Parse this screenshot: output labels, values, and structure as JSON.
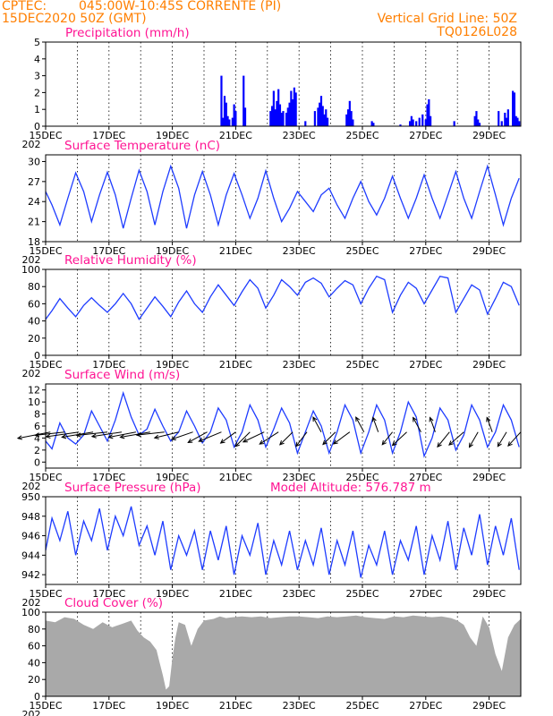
{
  "header": {
    "source": "CPTEC:",
    "location": "045:00W-10:45S   CORRENTE (PI)",
    "date": "15DEC2020 50Z (GMT)",
    "grid_note": "Vertical Grid Line: 50Z",
    "code": "TQ0126L028"
  },
  "x_axis": {
    "start_day": 15,
    "end_day": 30,
    "ticks": [
      "15DEC",
      "17DEC",
      "19DEC",
      "21DEC",
      "23DEC",
      "25DEC",
      "27DEC",
      "29DEC"
    ],
    "tick_days": [
      15,
      17,
      19,
      21,
      23,
      25,
      27,
      29
    ],
    "year_fragment": "202"
  },
  "chart_data": [
    {
      "key": "precip",
      "type": "bar",
      "title": "Precipitation (mm/h)",
      "ylim": [
        0,
        5
      ],
      "yticks": [
        0,
        1,
        2,
        3,
        4,
        5
      ],
      "color": "#0000ff",
      "x_day": [
        20.55,
        20.6,
        20.65,
        20.7,
        20.75,
        20.8,
        20.9,
        20.95,
        21.0,
        21.25,
        21.3,
        22.1,
        22.15,
        22.2,
        22.25,
        22.3,
        22.35,
        22.4,
        22.45,
        22.5,
        22.6,
        22.65,
        22.7,
        22.75,
        22.8,
        22.85,
        22.9,
        23.2,
        23.5,
        23.6,
        23.65,
        23.7,
        23.75,
        23.8,
        23.85,
        23.9,
        24.5,
        24.55,
        24.6,
        24.65,
        24.7,
        25.3,
        25.35,
        26.2,
        26.5,
        26.55,
        26.6,
        26.7,
        26.8,
        26.9,
        27.0,
        27.05,
        27.1,
        27.15,
        27.9,
        28.55,
        28.6,
        28.65,
        28.7,
        29.3,
        29.4,
        29.5,
        29.55,
        29.6,
        29.75,
        29.8,
        29.85,
        29.9,
        29.95
      ],
      "values": [
        3.0,
        0.5,
        1.8,
        1.4,
        0.6,
        0.4,
        0.5,
        1.3,
        0.9,
        3.0,
        1.1,
        0.9,
        1.2,
        2.1,
        1.0,
        1.5,
        2.2,
        1.3,
        0.8,
        0.9,
        0.8,
        1.1,
        1.4,
        2.1,
        1.6,
        2.3,
        2.0,
        0.3,
        0.9,
        1.1,
        1.4,
        1.8,
        1.2,
        0.7,
        1.0,
        0.5,
        0.7,
        1.0,
        1.5,
        0.9,
        0.4,
        0.3,
        0.2,
        0.1,
        0.3,
        0.6,
        0.4,
        0.3,
        0.5,
        0.7,
        0.4,
        1.3,
        1.6,
        0.6,
        0.3,
        0.6,
        0.9,
        0.4,
        0.2,
        0.9,
        0.3,
        0.8,
        0.5,
        1.0,
        2.1,
        2.0,
        0.6,
        0.5,
        0.3
      ]
    },
    {
      "key": "temp",
      "type": "line",
      "title": "Surface Temperature (nC)",
      "ylim": [
        18,
        31
      ],
      "yticks": [
        18,
        21,
        24,
        27,
        30
      ],
      "color": "#1e3cff",
      "x_day": [
        15.0,
        15.2,
        15.45,
        15.7,
        15.95,
        16.2,
        16.45,
        16.7,
        16.95,
        17.2,
        17.45,
        17.7,
        17.95,
        18.2,
        18.45,
        18.7,
        18.95,
        19.2,
        19.45,
        19.7,
        19.95,
        20.2,
        20.45,
        20.7,
        20.95,
        21.2,
        21.45,
        21.7,
        21.95,
        22.2,
        22.45,
        22.7,
        22.95,
        23.2,
        23.45,
        23.7,
        23.95,
        24.2,
        24.45,
        24.7,
        24.95,
        25.2,
        25.45,
        25.7,
        25.95,
        26.2,
        26.45,
        26.7,
        26.95,
        27.2,
        27.45,
        27.7,
        27.95,
        28.2,
        28.45,
        28.7,
        28.95,
        29.2,
        29.45,
        29.7,
        29.95
      ],
      "values": [
        25.5,
        23.5,
        20.5,
        24.5,
        28.3,
        25.5,
        21,
        25,
        28.4,
        25,
        20,
        24.5,
        28.7,
        25.5,
        20.5,
        25.5,
        29.3,
        26,
        20,
        25,
        28.5,
        25,
        20.5,
        25,
        28.2,
        25,
        21.5,
        24.5,
        28.6,
        24.5,
        21,
        23,
        25.5,
        24,
        22.5,
        25,
        26,
        23.5,
        21.5,
        24.5,
        27,
        24,
        22,
        24.5,
        27.8,
        24.5,
        21.5,
        24.5,
        28,
        24.5,
        21.5,
        25,
        28.5,
        24.5,
        21.5,
        25.5,
        29.3,
        25,
        20.5,
        24.5,
        27.5
      ]
    },
    {
      "key": "rh",
      "type": "line",
      "title": "Relative Humidity (%)",
      "ylim": [
        0,
        100
      ],
      "yticks": [
        0,
        20,
        40,
        60,
        80,
        100
      ],
      "color": "#1e3cff",
      "x_day": [
        15.0,
        15.2,
        15.45,
        15.7,
        15.95,
        16.2,
        16.45,
        16.7,
        16.95,
        17.2,
        17.45,
        17.7,
        17.95,
        18.2,
        18.45,
        18.7,
        18.95,
        19.2,
        19.45,
        19.7,
        19.95,
        20.2,
        20.45,
        20.7,
        20.95,
        21.2,
        21.45,
        21.7,
        21.95,
        22.2,
        22.45,
        22.7,
        22.95,
        23.2,
        23.45,
        23.7,
        23.95,
        24.2,
        24.45,
        24.7,
        24.95,
        25.2,
        25.45,
        25.7,
        25.95,
        26.2,
        26.45,
        26.7,
        26.95,
        27.2,
        27.45,
        27.7,
        27.95,
        28.2,
        28.45,
        28.7,
        28.95,
        29.2,
        29.45,
        29.7,
        29.95
      ],
      "values": [
        42,
        52,
        66,
        55,
        45,
        58,
        67,
        58,
        50,
        60,
        72,
        60,
        42,
        55,
        68,
        57,
        45,
        62,
        75,
        60,
        50,
        68,
        82,
        70,
        58,
        74,
        88,
        78,
        55,
        70,
        88,
        80,
        70,
        85,
        90,
        84,
        68,
        78,
        87,
        82,
        60,
        78,
        92,
        88,
        50,
        70,
        85,
        78,
        60,
        76,
        92,
        90,
        50,
        66,
        82,
        76,
        48,
        66,
        85,
        80,
        58
      ]
    },
    {
      "key": "wind",
      "type": "line",
      "title": "Surface Wind (m/s)",
      "ylim": [
        -1,
        13
      ],
      "yticks": [
        0,
        2,
        4,
        6,
        8,
        10,
        12
      ],
      "color": "#1e3cff",
      "x_day": [
        15.0,
        15.2,
        15.45,
        15.7,
        15.95,
        16.2,
        16.45,
        16.7,
        16.95,
        17.2,
        17.45,
        17.7,
        17.95,
        18.2,
        18.45,
        18.7,
        18.95,
        19.2,
        19.45,
        19.7,
        19.95,
        20.2,
        20.45,
        20.7,
        20.95,
        21.2,
        21.45,
        21.7,
        21.95,
        22.2,
        22.45,
        22.7,
        22.95,
        23.2,
        23.45,
        23.7,
        23.95,
        24.2,
        24.45,
        24.7,
        24.95,
        25.2,
        25.45,
        25.7,
        25.95,
        26.2,
        26.45,
        26.7,
        26.95,
        27.2,
        27.45,
        27.7,
        27.95,
        28.2,
        28.45,
        28.7,
        28.95,
        29.2,
        29.45,
        29.7,
        29.95
      ],
      "values": [
        3.5,
        2.2,
        6.5,
        4,
        3,
        4.5,
        8.5,
        6,
        3.5,
        7,
        11.5,
        7.5,
        4.5,
        5.5,
        8.8,
        6,
        3.5,
        5,
        8.5,
        6,
        3.2,
        5,
        9,
        7,
        2.5,
        5,
        9.5,
        7,
        2.5,
        5.5,
        9,
        6.5,
        1.5,
        5,
        8.5,
        6,
        1.5,
        5,
        9.5,
        7,
        1.5,
        5,
        9.5,
        7,
        1.5,
        5,
        10,
        7.5,
        1,
        4,
        9,
        7,
        2,
        4.5,
        9.5,
        7,
        2.5,
        5,
        9.5,
        7,
        2.5
      ],
      "vectors_day": [
        15.15,
        15.6,
        16.05,
        16.5,
        16.95,
        17.4,
        17.85,
        18.3,
        18.75,
        19.2,
        19.65,
        20.1,
        20.55,
        21.0,
        21.45,
        21.9,
        22.35,
        22.8,
        23.25,
        23.7,
        24.15,
        24.6,
        25.05,
        25.5,
        25.95,
        26.4,
        26.85,
        27.3,
        27.75,
        28.2,
        28.65,
        29.1,
        29.55,
        30.0
      ],
      "vectors_speed": [
        5.5,
        4.8,
        5.4,
        5.2,
        5,
        4.9,
        4.6,
        5,
        4.5,
        4.2,
        4,
        4.3,
        4.5,
        4,
        4.8,
        4.4,
        4.6,
        4.2,
        4.5,
        4.5,
        4.1,
        4.3,
        4.5,
        4.3,
        4,
        4.5,
        4.4,
        4.3,
        4.7,
        4.4,
        4.6,
        4.3,
        4.4,
        4.5
      ],
      "vectors_u": [
        -1,
        -1,
        -0.95,
        -1,
        -1,
        -0.9,
        -1,
        -0.95,
        -1,
        -0.9,
        -0.8,
        -0.7,
        -0.8,
        -0.6,
        -0.5,
        -0.7,
        -0.6,
        -0.5,
        -0.4,
        -0.3,
        -0.5,
        -0.6,
        -0.3,
        -0.2,
        -0.4,
        -0.5,
        -0.3,
        -0.2,
        -0.4,
        -0.5,
        -0.3,
        -0.2,
        -0.3,
        -0.4
      ],
      "vectors_v": [
        -0.35,
        -0.2,
        -0.25,
        -0.3,
        -0.2,
        -0.25,
        -0.35,
        -0.3,
        -0.2,
        -0.4,
        -0.5,
        -0.7,
        -0.6,
        -0.8,
        -0.9,
        -0.6,
        -0.7,
        -0.9,
        -0.95,
        1,
        -0.9,
        -0.8,
        1,
        1,
        -0.9,
        -0.85,
        1,
        1,
        -0.9,
        -0.8,
        -0.95,
        1,
        -0.9,
        -0.8
      ]
    },
    {
      "key": "pres",
      "type": "line",
      "title": "Surface Pressure (hPa)",
      "extra_label": "Model Altitude: 576.787 m",
      "ylim": [
        941,
        950
      ],
      "yticks": [
        942,
        944,
        946,
        948,
        950
      ],
      "color": "#1e3cff",
      "x_day": [
        15.0,
        15.2,
        15.45,
        15.7,
        15.95,
        16.2,
        16.45,
        16.7,
        16.95,
        17.2,
        17.45,
        17.7,
        17.95,
        18.2,
        18.45,
        18.7,
        18.95,
        19.2,
        19.45,
        19.7,
        19.95,
        20.2,
        20.45,
        20.7,
        20.95,
        21.2,
        21.45,
        21.7,
        21.95,
        22.2,
        22.45,
        22.7,
        22.95,
        23.2,
        23.45,
        23.7,
        23.95,
        24.2,
        24.45,
        24.7,
        24.95,
        25.2,
        25.45,
        25.7,
        25.95,
        26.2,
        26.45,
        26.7,
        26.95,
        27.2,
        27.45,
        27.7,
        27.95,
        28.2,
        28.45,
        28.7,
        28.95,
        29.2,
        29.45,
        29.7,
        29.95
      ],
      "values": [
        944.5,
        947.8,
        945.5,
        948.5,
        944,
        947.5,
        945.5,
        948.8,
        944.5,
        948,
        946,
        949,
        945,
        947,
        944,
        947.5,
        942.5,
        946,
        944,
        946.5,
        942.5,
        946.5,
        943.5,
        947,
        942,
        946,
        944,
        947.3,
        942,
        945.5,
        943,
        946.5,
        942.5,
        945.5,
        943,
        946.8,
        942,
        945.5,
        943,
        946.5,
        941.7,
        945,
        943,
        946.5,
        942,
        945.5,
        943.5,
        947,
        942,
        946,
        943.5,
        947.5,
        942.5,
        946.8,
        944,
        948.2,
        943,
        947,
        944,
        947.8,
        942.5
      ]
    },
    {
      "key": "cloud",
      "type": "area",
      "title": "Cloud Cover (%)",
      "ylim": [
        0,
        100
      ],
      "yticks": [
        0,
        20,
        40,
        60,
        80,
        100
      ],
      "color": "#a9a9a9",
      "x_day": [
        15.0,
        15.3,
        15.6,
        15.9,
        16.2,
        16.5,
        16.8,
        17.1,
        17.4,
        17.7,
        17.9,
        18.1,
        18.3,
        18.5,
        18.6,
        18.7,
        18.8,
        18.9,
        19.0,
        19.1,
        19.2,
        19.4,
        19.6,
        19.8,
        20.0,
        20.3,
        20.5,
        20.7,
        20.9,
        21.2,
        21.5,
        21.8,
        22.1,
        22.4,
        22.7,
        23.0,
        23.3,
        23.6,
        23.9,
        24.2,
        24.5,
        24.8,
        25.1,
        25.4,
        25.7,
        26.0,
        26.3,
        26.6,
        26.9,
        27.2,
        27.5,
        27.8,
        28.0,
        28.2,
        28.4,
        28.6,
        28.8,
        29.0,
        29.2,
        29.4,
        29.6,
        29.8,
        30.0
      ],
      "values": [
        90,
        88,
        94,
        92,
        85,
        80,
        88,
        82,
        86,
        90,
        78,
        70,
        65,
        55,
        40,
        25,
        8,
        12,
        45,
        70,
        88,
        85,
        60,
        80,
        90,
        92,
        95,
        93,
        94,
        95,
        94,
        95,
        93,
        94,
        95,
        95,
        94,
        93,
        95,
        94,
        95,
        96,
        94,
        93,
        92,
        95,
        94,
        96,
        95,
        94,
        95,
        93,
        90,
        85,
        70,
        60,
        95,
        82,
        50,
        30,
        70,
        85,
        92
      ]
    }
  ]
}
